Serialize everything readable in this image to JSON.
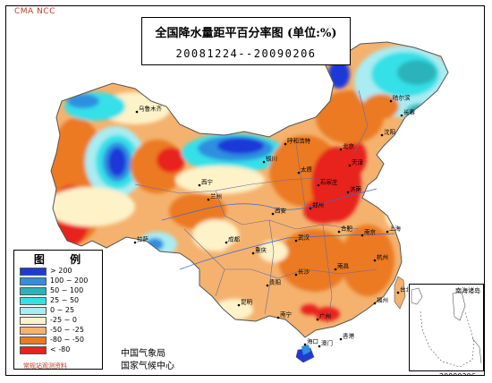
{
  "watermark": "CMA  NCC",
  "title": "全国降水量距平百分率图 (单位:%)",
  "subtitle": "20081224--20090206",
  "legend": {
    "title": "图 例",
    "items": [
      {
        "label": "> 200",
        "color": "#1f39d8"
      },
      {
        "label": "100 ~ 200",
        "color": "#2f8fe0"
      },
      {
        "label": "50 ~ 100",
        "color": "#2bb3ba"
      },
      {
        "label": "25 ~ 50",
        "color": "#34e0e8"
      },
      {
        "label": "0 ~ 25",
        "color": "#a9ecf2"
      },
      {
        "label": "-25 ~ 0",
        "color": "#fdf2c8"
      },
      {
        "label": "-50 ~ -25",
        "color": "#f4b26e"
      },
      {
        "label": "-80 ~ -50",
        "color": "#eb7a20"
      },
      {
        "label": "< -80",
        "color": "#e8221c"
      }
    ],
    "source": "常规站观测资料"
  },
  "organization": {
    "line1": "中国气象局",
    "line2": "国家气候中心"
  },
  "inset_label": "南海诸岛",
  "date_stamp": "20090206",
  "cities": [
    "乌鲁木齐",
    "哈尔滨",
    "长春",
    "沈阳",
    "呼和浩特",
    "北京",
    "天津",
    "银川",
    "太原",
    "石家庄",
    "济南",
    "西宁",
    "兰州",
    "西安",
    "郑州",
    "南京",
    "合肥",
    "上海",
    "拉萨",
    "成都",
    "武汉",
    "重庆",
    "杭州",
    "长沙",
    "南昌",
    "贵阳",
    "福州",
    "台北",
    "昆明",
    "南宁",
    "广州",
    "香港",
    "澳门",
    "海口"
  ]
}
